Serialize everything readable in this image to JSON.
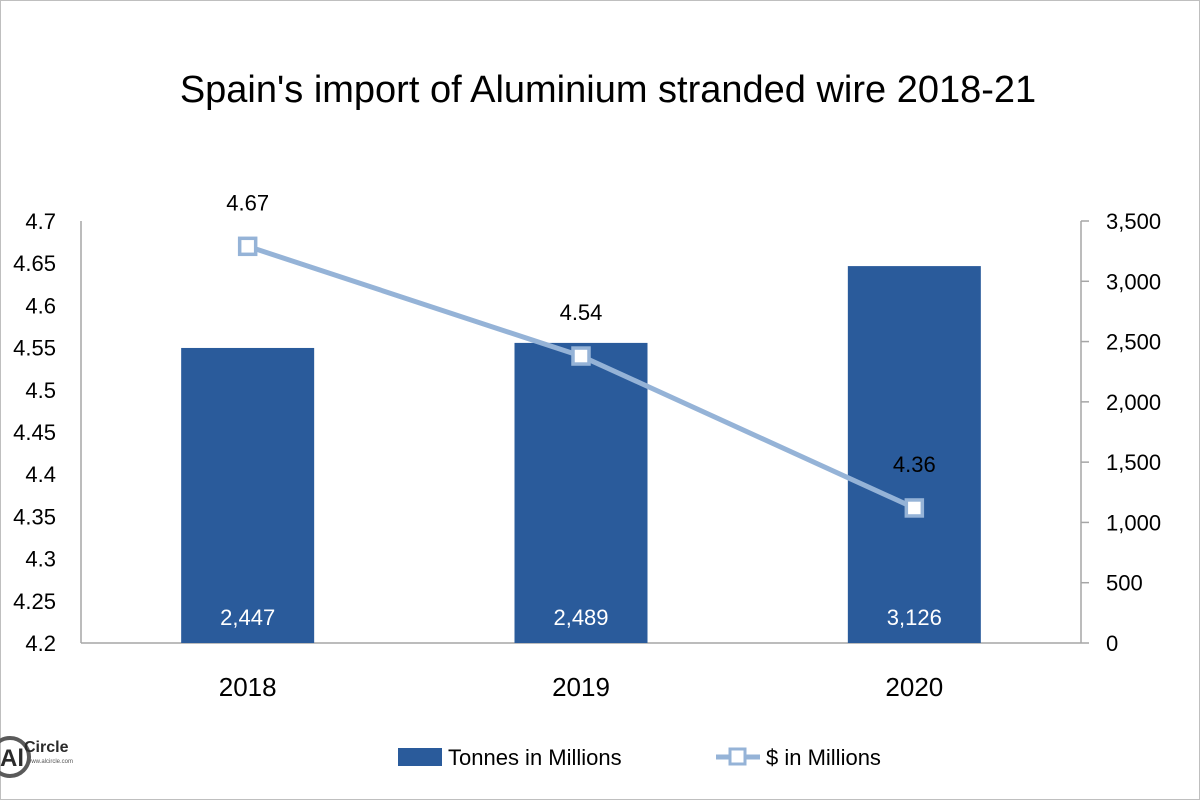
{
  "chart_data": {
    "type": "bar",
    "title": "Spain's import of Aluminium stranded wire 2018-21",
    "categories": [
      "2018",
      "2019",
      "2020"
    ],
    "series": [
      {
        "name": "Tonnes in Millions",
        "kind": "bar",
        "axis": "right",
        "values": [
          2447,
          2489,
          3126
        ],
        "labels": [
          "2,447",
          "2,489",
          "3,126"
        ],
        "color": "#2A5B9B"
      },
      {
        "name": "$ in Millions",
        "kind": "line",
        "axis": "left",
        "values": [
          4.67,
          4.54,
          4.36
        ],
        "labels": [
          "4.67",
          "4.54",
          "4.36"
        ],
        "color": "#95B3D7"
      }
    ],
    "left_axis": {
      "ylim": [
        4.2,
        4.7
      ],
      "ticks": [
        "4.2",
        "4.25",
        "4.3",
        "4.35",
        "4.4",
        "4.45",
        "4.5",
        "4.55",
        "4.6",
        "4.65",
        "4.7"
      ]
    },
    "right_axis": {
      "ylim": [
        0,
        3500
      ],
      "ticks": [
        "0",
        "500",
        "1,000",
        "1,500",
        "2,000",
        "2,500",
        "3,000",
        "3,500"
      ]
    },
    "grid": false,
    "legend": "bottom"
  },
  "logo": {
    "mark": "Al",
    "name": "Circle",
    "url": "www.alcircle.com"
  }
}
